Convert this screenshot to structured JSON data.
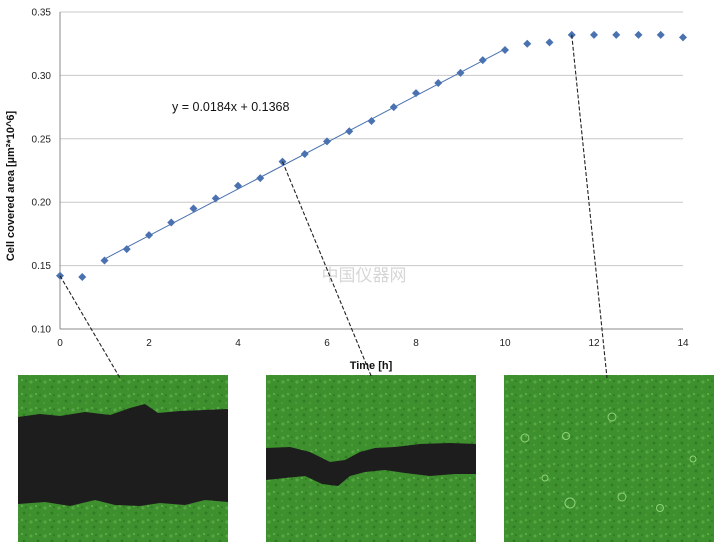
{
  "chart_data": {
    "type": "scatter",
    "xlabel": "Time [h]",
    "ylabel": "Cell covered area [µm²*10^6]",
    "xlim": [
      0,
      14
    ],
    "ylim": [
      0.1,
      0.35
    ],
    "x_ticks": [
      0,
      2,
      4,
      6,
      8,
      10,
      12,
      14
    ],
    "y_ticks": [
      0.1,
      0.15,
      0.2,
      0.25,
      0.3,
      0.35
    ],
    "y_tick_labels": [
      "0.10",
      "0.15",
      "0.20",
      "0.25",
      "0.30",
      "0.35"
    ],
    "grid": "horizontal",
    "marker": "diamond",
    "color": "#4a72b0",
    "points": [
      {
        "x": 0.0,
        "y": 0.142
      },
      {
        "x": 0.5,
        "y": 0.141
      },
      {
        "x": 1.0,
        "y": 0.154
      },
      {
        "x": 1.5,
        "y": 0.163
      },
      {
        "x": 2.0,
        "y": 0.174
      },
      {
        "x": 2.5,
        "y": 0.184
      },
      {
        "x": 3.0,
        "y": 0.195
      },
      {
        "x": 3.5,
        "y": 0.203
      },
      {
        "x": 4.0,
        "y": 0.213
      },
      {
        "x": 4.5,
        "y": 0.219
      },
      {
        "x": 5.0,
        "y": 0.232
      },
      {
        "x": 5.5,
        "y": 0.238
      },
      {
        "x": 6.0,
        "y": 0.248
      },
      {
        "x": 6.5,
        "y": 0.256
      },
      {
        "x": 7.0,
        "y": 0.264
      },
      {
        "x": 7.5,
        "y": 0.275
      },
      {
        "x": 8.0,
        "y": 0.286
      },
      {
        "x": 8.5,
        "y": 0.294
      },
      {
        "x": 9.0,
        "y": 0.302
      },
      {
        "x": 9.5,
        "y": 0.312
      },
      {
        "x": 10.0,
        "y": 0.32
      },
      {
        "x": 10.5,
        "y": 0.325
      },
      {
        "x": 11.0,
        "y": 0.326
      },
      {
        "x": 11.5,
        "y": 0.332
      },
      {
        "x": 12.0,
        "y": 0.332
      },
      {
        "x": 12.5,
        "y": 0.332
      },
      {
        "x": 13.0,
        "y": 0.332
      },
      {
        "x": 13.5,
        "y": 0.332
      },
      {
        "x": 14.0,
        "y": 0.33
      }
    ],
    "trendline": {
      "slope": 0.0184,
      "intercept": 0.1368,
      "x_range": [
        1,
        10
      ]
    },
    "equation_label": "y = 0.0184x + 0.1368",
    "annotations": [
      {
        "point_x": 0.0,
        "point_y": 0.142
      },
      {
        "point_x": 5.0,
        "point_y": 0.232
      },
      {
        "point_x": 11.5,
        "point_y": 0.332
      }
    ]
  },
  "watermark": "中国仪器网",
  "micrograph_colors": {
    "cells": "#3e8f2e",
    "gap": "#1d1d1d"
  }
}
